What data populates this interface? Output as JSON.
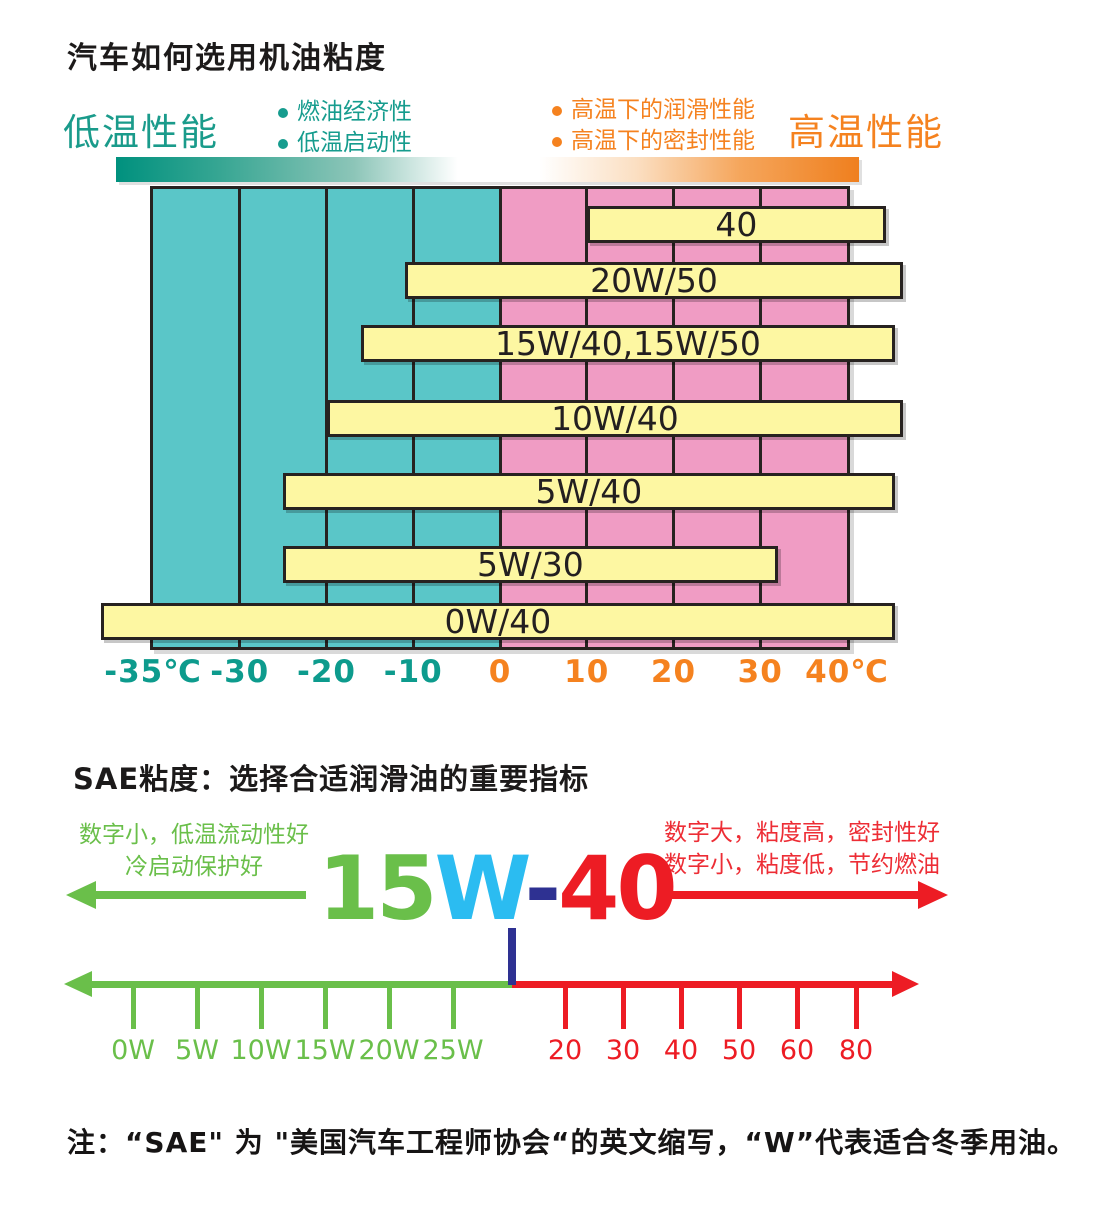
{
  "title": "汽车如何选用机油粘度",
  "header": {
    "low_temp_label": "低温性能",
    "low_temp_bullets": [
      "燃油经济性",
      "低温启动性"
    ],
    "high_temp_bullets": [
      "高温下的润滑性能",
      "高温下的密封性能"
    ],
    "high_temp_label": "高温性能"
  },
  "chart_data": {
    "type": "bar",
    "orientation": "horizontal",
    "title": "汽车如何选用机油粘度",
    "x_axis": {
      "unit": "℃",
      "tick_labels": [
        "-35℃",
        "-30",
        "-20",
        "-10",
        "0",
        "10",
        "20",
        "30",
        "40℃"
      ],
      "tick_values": [
        -35,
        -30,
        -20,
        -10,
        0,
        10,
        20,
        30,
        40
      ],
      "cold_region_range": [
        -35,
        0
      ],
      "hot_region_range": [
        0,
        40
      ]
    },
    "bars": [
      {
        "label": "40",
        "from": 10,
        "to": 44.5
      },
      {
        "label": "20W/50",
        "from": -11,
        "to": 46.5
      },
      {
        "label": "15W/40,15W/50",
        "from": -16,
        "to": 45.5
      },
      {
        "label": "10W/40",
        "from": -20,
        "to": 46.5
      },
      {
        "label": "5W/40",
        "from": -25,
        "to": 45.5
      },
      {
        "label": "5W/30",
        "from": -25,
        "to": 32
      },
      {
        "label": "0W/40",
        "from": -38,
        "to": 45.5
      }
    ],
    "legend_position": "none",
    "grid": true
  },
  "sae_section": {
    "title": "SAE粘度：选择合适润滑油的重要指标",
    "left_note": [
      "数字小，低温流动性好",
      "冷启动保护好"
    ],
    "right_note": [
      "数字大，粘度高，密封性好",
      "数字小，粘度低，节约燃油"
    ],
    "viscosity_label": {
      "winter_number": "15",
      "w": "W",
      "dash": "-",
      "summer_number": "40"
    },
    "winter_scale": [
      "0W",
      "5W",
      "10W",
      "15W",
      "20W",
      "25W"
    ],
    "summer_scale": [
      "20",
      "30",
      "40",
      "50",
      "60",
      "80"
    ]
  },
  "note": "注：“SAE\" 为 \"美国汽车工程师协会“的英文缩写，“W”代表适合冬季用油。",
  "colors": {
    "teal_fill": "#5ac6c8",
    "pink_fill": "#f09cc4",
    "bar_fill": "#fdf7a2",
    "outline": "#272220",
    "teal_text": "#1a9b8b",
    "teal_axis_text": "#0d9b8d",
    "orange": "#f5821f",
    "gradient_start": "#00917e",
    "gradient_end": "#ef7f1e",
    "green": "#6abf4a",
    "cyan": "#2bbcf1",
    "navy": "#2e3192",
    "red": "#ed1c24"
  }
}
